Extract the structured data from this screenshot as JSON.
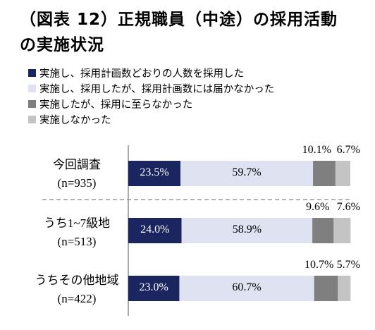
{
  "title_line1": "（図表 12）正規職員（中途）の採用活動",
  "title_line2": "の実施状況",
  "chart_data": {
    "type": "bar",
    "orientation": "horizontal",
    "stacked": true,
    "percent_axis": [
      0,
      100
    ],
    "series": [
      {
        "name": "実施し、採用計画数どおりの人数を採用した",
        "color": "#1b2560",
        "values": [
          23.5,
          24.0,
          23.0
        ]
      },
      {
        "name": "実施し、採用したが、採用計画数には届かなかった",
        "color": "#dfe3f1",
        "values": [
          59.7,
          58.9,
          60.7
        ]
      },
      {
        "name": "実施したが、採用に至らなかった",
        "color": "#7f7f7f",
        "values": [
          10.1,
          9.6,
          10.7
        ]
      },
      {
        "name": "実施しなかった",
        "color": "#c4c4c4",
        "values": [
          6.7,
          7.6,
          5.7
        ]
      }
    ],
    "categories": [
      {
        "line1": "今回調査",
        "line2": "(n=935)"
      },
      {
        "line1": "うち1~7級地",
        "line2": "(n=513)"
      },
      {
        "line1": "うちその他地域",
        "line2": "(n=422)"
      }
    ],
    "labels": [
      [
        "23.5%",
        "59.7%",
        "10.1%",
        "6.7%"
      ],
      [
        "24.0%",
        "58.9%",
        "9.6%",
        "7.6%"
      ],
      [
        "23.0%",
        "60.7%",
        "10.7%",
        "5.7%"
      ]
    ]
  }
}
